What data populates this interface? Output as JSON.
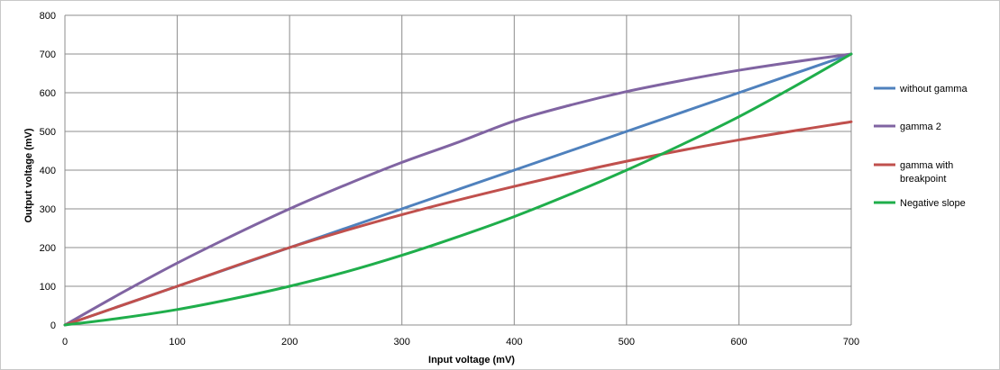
{
  "chart_data": {
    "type": "line",
    "title": "",
    "xlabel": "Input voltage (mV)",
    "ylabel": "Output voltage (mV)",
    "xlim": [
      0,
      700
    ],
    "ylim": [
      0,
      800
    ],
    "x_ticks": [
      "0",
      "100",
      "200",
      "300",
      "400",
      "500",
      "600",
      "700"
    ],
    "y_ticks": [
      "0",
      "100",
      "200",
      "300",
      "400",
      "500",
      "600",
      "700",
      "800"
    ],
    "grid": true,
    "legend_position": "right",
    "series": [
      {
        "name": "without gamma",
        "color": "#4f81bd",
        "x": [
          0,
          100,
          200,
          300,
          400,
          500,
          600,
          700
        ],
        "y": [
          0,
          100,
          200,
          300,
          400,
          500,
          600,
          700
        ]
      },
      {
        "name": "gamma 2",
        "color": "#8064a2",
        "x": [
          0,
          50,
          100,
          150,
          200,
          250,
          300,
          350,
          400,
          450,
          500,
          550,
          600,
          650,
          700
        ],
        "y": [
          0,
          82,
          160,
          232,
          300,
          362,
          420,
          472,
          527,
          568,
          603,
          632,
          658,
          680,
          700
        ]
      },
      {
        "name": "gamma with breakpoint",
        "color": "#c0504d",
        "x": [
          0,
          100,
          200,
          300,
          400,
          500,
          600,
          700
        ],
        "y": [
          0,
          100,
          200,
          285,
          358,
          423,
          478,
          525
        ]
      },
      {
        "name": "Negative slope",
        "color": "#1fae4b",
        "x": [
          0,
          50,
          100,
          150,
          200,
          250,
          300,
          350,
          400,
          450,
          500,
          550,
          600,
          650,
          700
        ],
        "y": [
          0,
          18,
          40,
          68,
          100,
          137,
          180,
          228,
          280,
          338,
          400,
          467,
          538,
          617,
          700
        ]
      }
    ]
  }
}
